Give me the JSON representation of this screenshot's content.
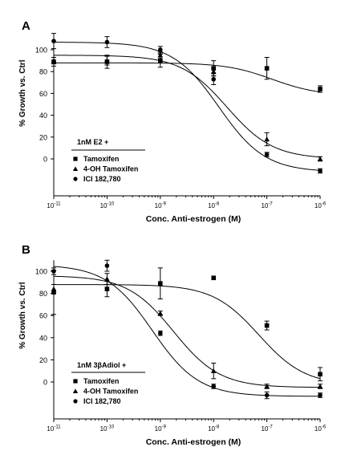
{
  "chart_data": [
    {
      "type": "scatter",
      "panel_label": "A",
      "xlabel": "Conc. Anti-estrogen (M)",
      "ylabel": "% Growth vs. Ctrl",
      "x_scale": "log",
      "xlim": [
        1e-11,
        1e-06
      ],
      "ylim": [
        -30,
        110
      ],
      "x_tick_labels": [
        {
          "base": "10",
          "exp": "-11"
        },
        {
          "base": "10",
          "exp": "-10"
        },
        {
          "base": "10",
          "exp": "-9"
        },
        {
          "base": "10",
          "exp": "-8"
        },
        {
          "base": "10",
          "exp": "-7"
        },
        {
          "base": "10",
          "exp": "-6"
        }
      ],
      "y_ticks": [
        0,
        20,
        40,
        60,
        80,
        100
      ],
      "legend_title": "1nM E2 +",
      "legend_position": "bottom-left",
      "series": [
        {
          "name": "Tamoxifen",
          "marker": "square",
          "x": [
            1e-11,
            1e-10,
            1e-09,
            1e-08,
            1e-07,
            1e-06
          ],
          "y": [
            89,
            89,
            90,
            83,
            83,
            64
          ],
          "err": [
            4,
            6,
            6,
            7,
            10,
            3
          ],
          "fit": {
            "top": 88,
            "bottom": 58,
            "log_ec50": -6.9,
            "hill": 1
          }
        },
        {
          "name": "4-OH Tamoxifen",
          "marker": "triangle",
          "x": [
            1e-11,
            1e-10,
            1e-09,
            1e-08,
            1e-07,
            1e-06
          ],
          "y": [
            90,
            90,
            95,
            80,
            18,
            0
          ],
          "err": [
            3,
            4,
            3,
            4,
            6,
            2
          ],
          "fit": {
            "top": 95,
            "bottom": 0,
            "log_ec50": -7.75,
            "hill": 1
          }
        },
        {
          "name": "ICI 182,780",
          "marker": "circle",
          "x": [
            1e-11,
            1e-10,
            1e-09,
            1e-08,
            1e-07,
            1e-06
          ],
          "y": [
            108,
            107,
            100,
            73,
            4,
            -11
          ],
          "err": [
            7,
            5,
            3,
            5,
            2,
            2
          ],
          "fit": {
            "top": 107,
            "bottom": -12,
            "log_ec50": -7.9,
            "hill": 1
          }
        }
      ]
    },
    {
      "type": "scatter",
      "panel_label": "B",
      "xlabel": "Conc. Anti-estrogen (M)",
      "ylabel": "% Growth vs. Ctrl",
      "x_scale": "log",
      "xlim": [
        1e-11,
        1e-06
      ],
      "ylim": [
        -30,
        110
      ],
      "x_tick_labels": [
        {
          "base": "10",
          "exp": "-11"
        },
        {
          "base": "10",
          "exp": "-10"
        },
        {
          "base": "10",
          "exp": "-9"
        },
        {
          "base": "10",
          "exp": "-8"
        },
        {
          "base": "10",
          "exp": "-7"
        },
        {
          "base": "10",
          "exp": "-6"
        }
      ],
      "y_ticks": [
        0,
        20,
        40,
        60,
        80,
        100
      ],
      "legend_title": "1nM 3βAdiol +",
      "legend_position": "bottom-left",
      "series": [
        {
          "name": "Tamoxifen",
          "marker": "square",
          "x": [
            1e-11,
            1e-10,
            1e-09,
            1e-08,
            1e-07,
            1e-06
          ],
          "y": [
            81,
            84,
            89,
            94,
            51,
            7
          ],
          "err": [
            20,
            7,
            14,
            0,
            4,
            6
          ],
          "fit": {
            "top": 88,
            "bottom": -3,
            "log_ec50": -7.15,
            "hill": 1
          }
        },
        {
          "name": "4-OH Tamoxifen",
          "marker": "triangle",
          "x": [
            1e-11,
            1e-10,
            1e-09,
            1e-08,
            1e-07,
            1e-06
          ],
          "y": [
            84,
            93,
            62,
            10,
            -4,
            -4
          ],
          "err": [
            4,
            5,
            2,
            7,
            2,
            2
          ],
          "fit": {
            "top": 96,
            "bottom": -5,
            "log_ec50": -8.75,
            "hill": 1
          }
        },
        {
          "name": "ICI 182,780",
          "marker": "circle",
          "x": [
            1e-11,
            1e-10,
            1e-09,
            1e-08,
            1e-07,
            1e-06
          ],
          "y": [
            100,
            105,
            44,
            -4,
            -12,
            -12
          ],
          "err": [
            3,
            5,
            2,
            2,
            3,
            2
          ],
          "fit": {
            "top": 106,
            "bottom": -13,
            "log_ec50": -9.15,
            "hill": 1
          }
        }
      ]
    }
  ]
}
